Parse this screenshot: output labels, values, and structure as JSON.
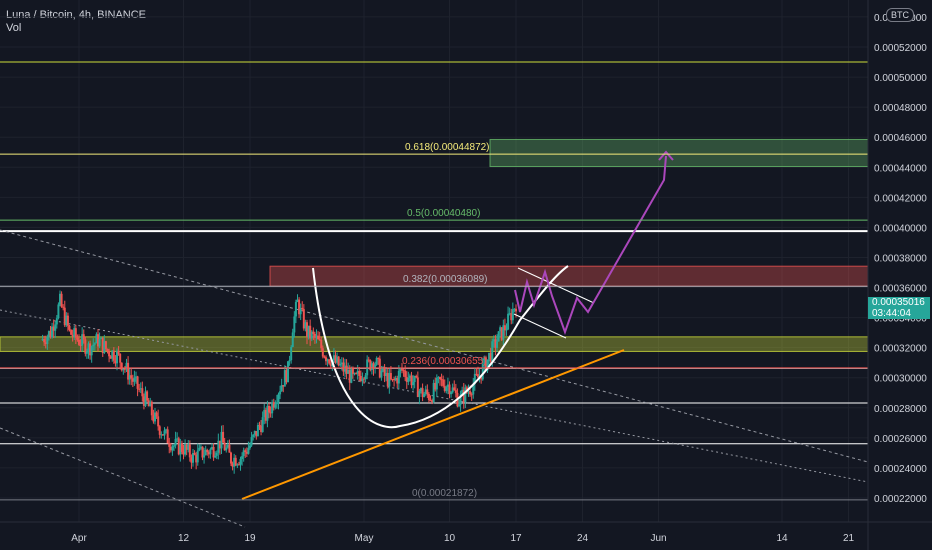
{
  "header": {
    "symbol": "Luna / Bitcoin, 4h, BINANCE",
    "indicator": "Vol"
  },
  "badge": "BTC",
  "price_tag": {
    "price": "0.00035016",
    "countdown": "03:44:04",
    "color": "#26a69a"
  },
  "fib_levels": [
    {
      "label": "0.618(0.00044872)",
      "price": 0.00044872,
      "color": "#f5eb7b"
    },
    {
      "label": "0.5(0.00040480)",
      "price": 0.0004048,
      "color": "#66bb6a"
    },
    {
      "label": "0.382(0.00036089)",
      "price": 0.00036089,
      "color": "#b2b5be"
    },
    {
      "label": "0.236(0.00030655)",
      "price": 0.00030655,
      "color": "#ef5350"
    },
    {
      "label": "0(0.00021872)",
      "price": 0.00021872,
      "color": "#787b86"
    }
  ],
  "chart_data": {
    "type": "candlestick",
    "title": "Luna / Bitcoin, 4h, BINANCE",
    "ylim": [
      0.00021,
      0.00055
    ],
    "y_ticks": [
      "0.00022000",
      "0.00024000",
      "0.00026000",
      "0.00028000",
      "0.00030000",
      "0.00032000",
      "0.00034000",
      "0.00036000",
      "0.00038000",
      "0.00040000",
      "0.00042000",
      "0.00044000",
      "0.00046000",
      "0.00048000",
      "0.00050000",
      "0.00052000",
      "0.00054000"
    ],
    "y_tick_values": [
      0.00022,
      0.00024,
      0.00026,
      0.00028,
      0.0003,
      0.00032,
      0.00034,
      0.00036,
      0.00038,
      0.0004,
      0.00042,
      0.00044,
      0.00046,
      0.00048,
      0.0005,
      0.00052,
      0.00054
    ],
    "x_ticks": [
      "Apr",
      "12",
      "19",
      "May",
      "10",
      "17",
      "24",
      "Jun",
      "14",
      "21"
    ],
    "x_tick_days": [
      0,
      11,
      18,
      30,
      39,
      46,
      53,
      61,
      74,
      81
    ],
    "x_range_days": [
      -4,
      81.5
    ],
    "up_color": "#26a69a",
    "down_color": "#ef5350",
    "close_series": [
      [
        -4,
        0.000325
      ],
      [
        -3,
        0.00033
      ],
      [
        -2,
        0.00035
      ],
      [
        -1.5,
        0.00034
      ],
      [
        -1,
        0.00033
      ],
      [
        0,
        0.000325
      ],
      [
        1,
        0.00032
      ],
      [
        2,
        0.000325
      ],
      [
        3,
        0.000318
      ],
      [
        4,
        0.000315
      ],
      [
        5,
        0.000305
      ],
      [
        6,
        0.000295
      ],
      [
        7,
        0.000285
      ],
      [
        8,
        0.000272
      ],
      [
        9,
        0.000262
      ],
      [
        10,
        0.000255
      ],
      [
        11,
        0.000253
      ],
      [
        12,
        0.000247
      ],
      [
        13,
        0.00025
      ],
      [
        14,
        0.000252
      ],
      [
        15,
        0.000258
      ],
      [
        16,
        0.000246
      ],
      [
        17,
        0.000247
      ],
      [
        18,
        0.000255
      ],
      [
        19,
        0.000268
      ],
      [
        20,
        0.000278
      ],
      [
        21,
        0.000292
      ],
      [
        22,
        0.000305
      ],
      [
        22.5,
        0.000335
      ],
      [
        23,
        0.00035
      ],
      [
        24,
        0.00033
      ],
      [
        25,
        0.000325
      ],
      [
        26,
        0.000315
      ],
      [
        27,
        0.00031
      ],
      [
        28,
        0.000305
      ],
      [
        29,
        0.000298
      ],
      [
        30,
        0.000305
      ],
      [
        31,
        0.000312
      ],
      [
        32,
        0.000302
      ],
      [
        33,
        0.000296
      ],
      [
        34,
        0.000305
      ],
      [
        35,
        0.000299
      ],
      [
        36,
        0.00029
      ],
      [
        37,
        0.000288
      ],
      [
        38,
        0.000297
      ],
      [
        39,
        0.000295
      ],
      [
        40,
        0.000285
      ],
      [
        41,
        0.000292
      ],
      [
        42,
        0.0003
      ],
      [
        43,
        0.000312
      ],
      [
        44,
        0.000325
      ],
      [
        45,
        0.000335
      ],
      [
        46,
        0.00035
      ]
    ],
    "zones": [
      {
        "name": "resistance",
        "from": 0.00036089,
        "to": 0.0003742,
        "color": "#ef5350"
      },
      {
        "name": "support",
        "from": 0.0003175,
        "to": 0.0003272,
        "color": "#cddc39"
      },
      {
        "name": "target",
        "from": 0.0004405,
        "to": 0.0004585,
        "color": "#66bb6a"
      }
    ],
    "horizontal_lines": [
      0.00051,
      0.0003975,
      0.0003063,
      0.0002832,
      0.0002561
    ],
    "grid": true,
    "legend": "top-left"
  }
}
